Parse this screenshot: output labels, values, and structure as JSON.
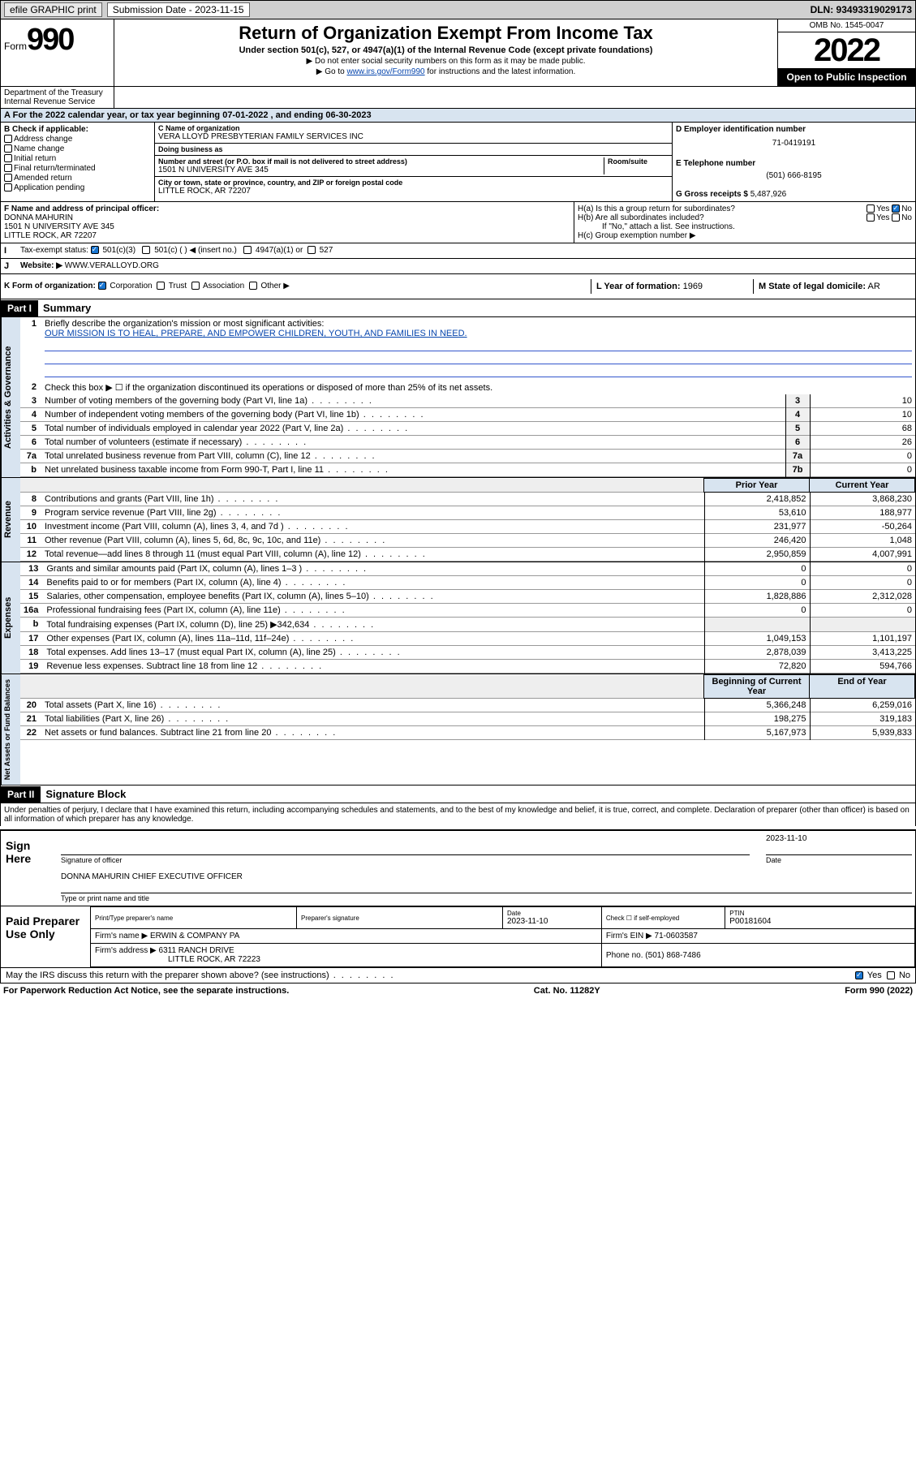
{
  "topbar": {
    "efile": "efile GRAPHIC print",
    "subdate_label": "Submission Date - 2023-11-15",
    "dln": "DLN: 93493319029173"
  },
  "header": {
    "form_word": "Form",
    "form_num": "990",
    "title": "Return of Organization Exempt From Income Tax",
    "sub1": "Under section 501(c), 527, or 4947(a)(1) of the Internal Revenue Code (except private foundations)",
    "sub2": "▶ Do not enter social security numbers on this form as it may be made public.",
    "sub3_pre": "▶ Go to ",
    "sub3_link": "www.irs.gov/Form990",
    "sub3_post": " for instructions and the latest information.",
    "omb": "OMB No. 1545-0047",
    "year": "2022",
    "open": "Open to Public Inspection",
    "dept": "Department of the Treasury\nInternal Revenue Service"
  },
  "periodA": "For the 2022 calendar year, or tax year beginning 07-01-2022    , and ending 06-30-2023",
  "boxB": {
    "label": "B Check if applicable:",
    "opts": [
      "Address change",
      "Name change",
      "Initial return",
      "Final return/terminated",
      "Amended return",
      "Application pending"
    ]
  },
  "boxC": {
    "name_lbl": "C Name of organization",
    "name": "VERA LLOYD PRESBYTERIAN FAMILY SERVICES INC",
    "dba_lbl": "Doing business as",
    "dba": "",
    "addr_lbl": "Number and street (or P.O. box if mail is not delivered to street address)",
    "room_lbl": "Room/suite",
    "addr": "1501 N UNIVERSITY AVE 345",
    "city_lbl": "City or town, state or province, country, and ZIP or foreign postal code",
    "city": "LITTLE ROCK, AR  72207"
  },
  "boxD": {
    "ein_lbl": "D Employer identification number",
    "ein": "71-0419191",
    "phone_lbl": "E Telephone number",
    "phone": "(501) 666-8195",
    "gross_lbl": "G Gross receipts $",
    "gross": "5,487,926"
  },
  "boxF": {
    "lbl": "F Name and address of principal officer:",
    "name": "DONNA MAHURIN",
    "addr1": "1501 N UNIVERSITY AVE 345",
    "addr2": "LITTLE ROCK, AR  72207"
  },
  "boxH": {
    "ha": "H(a)  Is this a group return for subordinates?",
    "hb": "H(b)  Are all subordinates included?",
    "hb_note": "If \"No,\" attach a list. See instructions.",
    "hc": "H(c)  Group exemption number ▶",
    "yes": "Yes",
    "no": "No"
  },
  "boxI": {
    "lbl": "Tax-exempt status:",
    "o1": "501(c)(3)",
    "o2": "501(c) (  ) ◀ (insert no.)",
    "o3": "4947(a)(1) or",
    "o4": "527"
  },
  "boxJ": {
    "lbl": "Website: ▶",
    "val": "WWW.VERALLOYD.ORG"
  },
  "boxK": {
    "lbl": "K Form of organization:",
    "o1": "Corporation",
    "o2": "Trust",
    "o3": "Association",
    "o4": "Other ▶"
  },
  "boxL": {
    "lbl": "L Year of formation:",
    "val": "1969"
  },
  "boxM": {
    "lbl": "M State of legal domicile:",
    "val": "AR"
  },
  "part1": {
    "header": "Part I",
    "title": "Summary",
    "line1_lbl": "Briefly describe the organization's mission or most significant activities:",
    "line1_val": "OUR MISSION IS TO HEAL, PREPARE, AND EMPOWER CHILDREN, YOUTH, AND FAMILIES IN NEED.",
    "line2": "Check this box ▶ ☐  if the organization discontinued its operations or disposed of more than 25% of its net assets.",
    "gov_lines": [
      {
        "n": "3",
        "d": "Number of voting members of the governing body (Part VI, line 1a)",
        "box": "3",
        "v": "10"
      },
      {
        "n": "4",
        "d": "Number of independent voting members of the governing body (Part VI, line 1b)",
        "box": "4",
        "v": "10"
      },
      {
        "n": "5",
        "d": "Total number of individuals employed in calendar year 2022 (Part V, line 2a)",
        "box": "5",
        "v": "68"
      },
      {
        "n": "6",
        "d": "Total number of volunteers (estimate if necessary)",
        "box": "6",
        "v": "26"
      },
      {
        "n": "7a",
        "d": "Total unrelated business revenue from Part VIII, column (C), line 12",
        "box": "7a",
        "v": "0"
      },
      {
        "n": "b",
        "d": "Net unrelated business taxable income from Form 990-T, Part I, line 11",
        "box": "7b",
        "v": "0"
      }
    ],
    "col_prior": "Prior Year",
    "col_curr": "Current Year",
    "rev_lines": [
      {
        "n": "8",
        "d": "Contributions and grants (Part VIII, line 1h)",
        "p": "2,418,852",
        "c": "3,868,230"
      },
      {
        "n": "9",
        "d": "Program service revenue (Part VIII, line 2g)",
        "p": "53,610",
        "c": "188,977"
      },
      {
        "n": "10",
        "d": "Investment income (Part VIII, column (A), lines 3, 4, and 7d )",
        "p": "231,977",
        "c": "-50,264"
      },
      {
        "n": "11",
        "d": "Other revenue (Part VIII, column (A), lines 5, 6d, 8c, 9c, 10c, and 11e)",
        "p": "246,420",
        "c": "1,048"
      },
      {
        "n": "12",
        "d": "Total revenue—add lines 8 through 11 (must equal Part VIII, column (A), line 12)",
        "p": "2,950,859",
        "c": "4,007,991"
      }
    ],
    "exp_lines": [
      {
        "n": "13",
        "d": "Grants and similar amounts paid (Part IX, column (A), lines 1–3 )",
        "p": "0",
        "c": "0"
      },
      {
        "n": "14",
        "d": "Benefits paid to or for members (Part IX, column (A), line 4)",
        "p": "0",
        "c": "0"
      },
      {
        "n": "15",
        "d": "Salaries, other compensation, employee benefits (Part IX, column (A), lines 5–10)",
        "p": "1,828,886",
        "c": "2,312,028"
      },
      {
        "n": "16a",
        "d": "Professional fundraising fees (Part IX, column (A), line 11e)",
        "p": "0",
        "c": "0"
      },
      {
        "n": "b",
        "d": "Total fundraising expenses (Part IX, column (D), line 25) ▶342,634",
        "p": "",
        "c": ""
      },
      {
        "n": "17",
        "d": "Other expenses (Part IX, column (A), lines 11a–11d, 11f–24e)",
        "p": "1,049,153",
        "c": "1,101,197"
      },
      {
        "n": "18",
        "d": "Total expenses. Add lines 13–17 (must equal Part IX, column (A), line 25)",
        "p": "2,878,039",
        "c": "3,413,225"
      },
      {
        "n": "19",
        "d": "Revenue less expenses. Subtract line 18 from line 12",
        "p": "72,820",
        "c": "594,766"
      }
    ],
    "col_begin": "Beginning of Current Year",
    "col_end": "End of Year",
    "net_lines": [
      {
        "n": "20",
        "d": "Total assets (Part X, line 16)",
        "p": "5,366,248",
        "c": "6,259,016"
      },
      {
        "n": "21",
        "d": "Total liabilities (Part X, line 26)",
        "p": "198,275",
        "c": "319,183"
      },
      {
        "n": "22",
        "d": "Net assets or fund balances. Subtract line 21 from line 20",
        "p": "5,167,973",
        "c": "5,939,833"
      }
    ],
    "tab_gov": "Activities & Governance",
    "tab_rev": "Revenue",
    "tab_exp": "Expenses",
    "tab_net": "Net Assets or Fund Balances"
  },
  "part2": {
    "header": "Part II",
    "title": "Signature Block",
    "decl": "Under penalties of perjury, I declare that I have examined this return, including accompanying schedules and statements, and to the best of my knowledge and belief, it is true, correct, and complete. Declaration of preparer (other than officer) is based on all information of which preparer has any knowledge.",
    "sign_here": "Sign Here",
    "sig_officer": "Signature of officer",
    "sig_date": "Date",
    "sig_date_val": "2023-11-10",
    "officer_name": "DONNA MAHURIN  CHIEF EXECUTIVE OFFICER",
    "type_name": "Type or print name and title",
    "paid": "Paid Preparer Use Only",
    "pt_name_lbl": "Print/Type preparer's name",
    "pt_sig_lbl": "Preparer's signature",
    "pt_date_lbl": "Date",
    "pt_date": "2023-11-10",
    "pt_check": "Check ☐ if self-employed",
    "ptin_lbl": "PTIN",
    "ptin": "P00181604",
    "firm_name_lbl": "Firm's name    ▶",
    "firm_name": "ERWIN & COMPANY PA",
    "firm_ein_lbl": "Firm's EIN ▶",
    "firm_ein": "71-0603587",
    "firm_addr_lbl": "Firm's address ▶",
    "firm_addr1": "6311 RANCH DRIVE",
    "firm_addr2": "LITTLE ROCK, AR  72223",
    "firm_phone_lbl": "Phone no.",
    "firm_phone": "(501) 868-7486",
    "discuss": "May the IRS discuss this return with the preparer shown above? (see instructions)",
    "yes": "Yes",
    "no": "No"
  },
  "footer": {
    "pra": "For Paperwork Reduction Act Notice, see the separate instructions.",
    "cat": "Cat. No. 11282Y",
    "form": "Form 990 (2022)"
  }
}
